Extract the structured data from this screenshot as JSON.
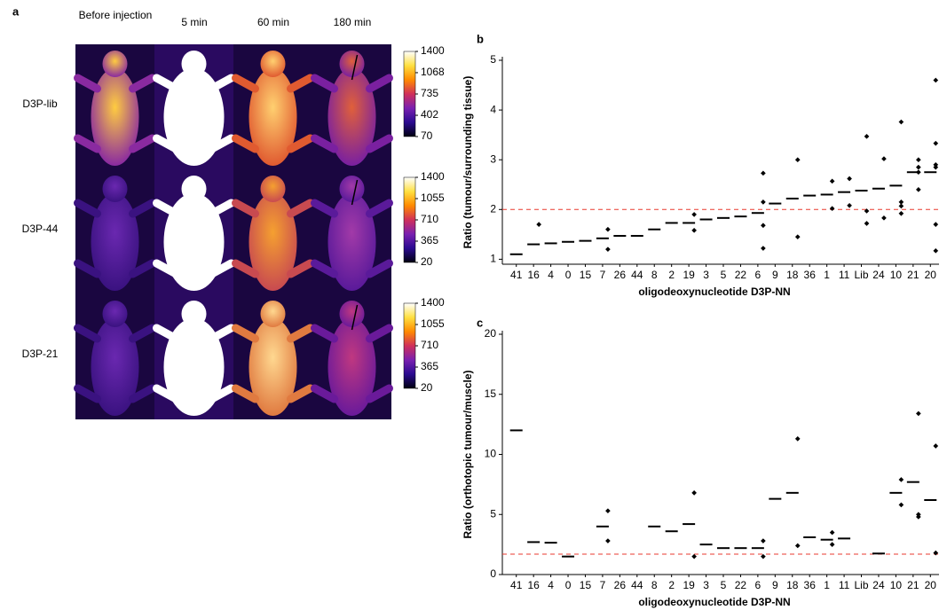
{
  "panel_a": {
    "label": "a",
    "columns": [
      "Before injection",
      "5 min",
      "60 min",
      "180 min"
    ],
    "rows": [
      "D3P-lib",
      "D3P-44",
      "D3P-21"
    ],
    "colorbars": [
      {
        "ticks": [
          1400,
          1068,
          735,
          402,
          70
        ]
      },
      {
        "ticks": [
          1400,
          1055,
          710,
          365,
          20
        ]
      },
      {
        "ticks": [
          1400,
          1055,
          710,
          365,
          20
        ]
      }
    ]
  },
  "chart_data": [
    {
      "type": "dot",
      "label": "b",
      "ylabel": "Ratio (tumour/surrounding tissue)",
      "xlabel": "oligodeoxynucleotide D3P-NN",
      "categories": [
        "41",
        "16",
        "4",
        "0",
        "15",
        "7",
        "26",
        "44",
        "8",
        "2",
        "19",
        "3",
        "5",
        "22",
        "6",
        "9",
        "18",
        "36",
        "1",
        "11",
        "Lib",
        "24",
        "10",
        "21",
        "20"
      ],
      "means": [
        1.1,
        1.3,
        1.32,
        1.35,
        1.37,
        1.42,
        1.47,
        1.47,
        1.6,
        1.73,
        1.73,
        1.8,
        1.83,
        1.86,
        1.93,
        2.12,
        2.22,
        2.28,
        2.3,
        2.35,
        2.38,
        2.42,
        2.48,
        2.75,
        2.75
      ],
      "points": [
        [],
        [
          1.7
        ],
        [],
        [],
        [],
        [
          1.6,
          1.2
        ],
        [],
        [],
        [],
        [],
        [
          1.9,
          1.58
        ],
        [],
        [],
        [],
        [
          2.73,
          2.15,
          1.68,
          1.22
        ],
        [],
        [
          3.0,
          1.45
        ],
        [],
        [
          2.57,
          2.02
        ],
        [
          2.62,
          2.08
        ],
        [
          3.47,
          1.97,
          1.72
        ],
        [
          3.02,
          1.83
        ],
        [
          3.76,
          2.15,
          1.92,
          2.07
        ],
        [
          3.0,
          2.85,
          2.75,
          2.4
        ],
        [
          4.6,
          3.33,
          2.9,
          2.85,
          1.7,
          1.17
        ]
      ],
      "ylim": [
        0.9,
        5
      ],
      "yticks": [
        1,
        2,
        3,
        4,
        5
      ],
      "threshold": 2,
      "threshold_color": "#e8382f",
      "color": "#000000"
    },
    {
      "type": "dot",
      "label": "c",
      "ylabel": "Ratio (orthotopic tumour/muscle)",
      "xlabel": "oligodeoxynucleotide D3P-NN",
      "categories": [
        "41",
        "16",
        "4",
        "0",
        "15",
        "7",
        "26",
        "44",
        "8",
        "2",
        "19",
        "3",
        "5",
        "22",
        "6",
        "9",
        "18",
        "36",
        "1",
        "11",
        "Lib",
        "24",
        "10",
        "21",
        "20"
      ],
      "means": [
        12.0,
        2.7,
        2.65,
        1.5,
        null,
        4.0,
        null,
        null,
        4.0,
        3.6,
        4.2,
        2.5,
        2.2,
        2.2,
        2.2,
        6.3,
        6.8,
        3.1,
        2.9,
        3.0,
        null,
        1.75,
        6.8,
        7.7,
        6.2
      ],
      "points": [
        [],
        [],
        [],
        [],
        [],
        [
          5.3,
          2.8
        ],
        [],
        [],
        [],
        [],
        [
          6.8,
          1.5
        ],
        [],
        [],
        [],
        [
          2.8,
          1.5
        ],
        [],
        [
          11.3,
          2.4
        ],
        [],
        [
          3.5,
          2.5
        ],
        [],
        [],
        [],
        [
          7.9,
          5.8
        ],
        [
          13.4,
          5.0,
          4.8
        ],
        [
          10.7,
          1.8
        ]
      ],
      "ylim": [
        0,
        20
      ],
      "yticks": [
        0,
        5,
        10,
        15,
        20
      ],
      "threshold": 1.7,
      "threshold_color": "#e8382f",
      "color": "#000000"
    }
  ]
}
